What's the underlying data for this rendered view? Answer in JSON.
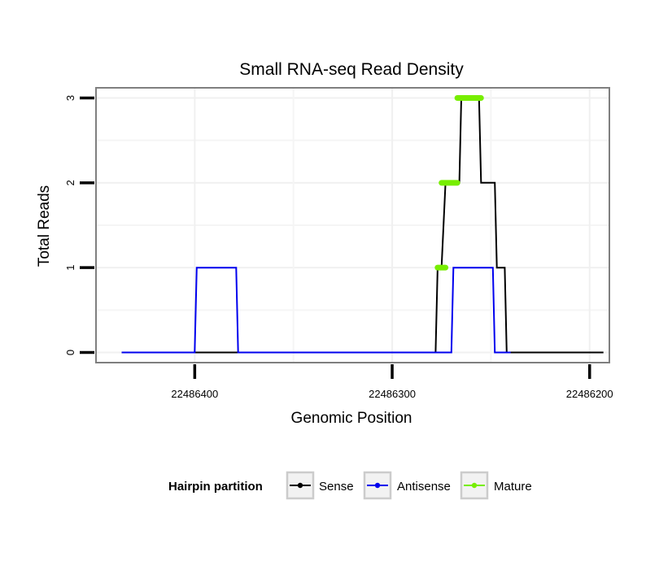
{
  "chart_data": {
    "type": "line",
    "title": "Small RNA-seq Read Density",
    "xlabel": "Genomic Position",
    "ylabel": "Total Reads",
    "x_reversed": true,
    "xlim": [
      22486450,
      22486190
    ],
    "ylim": [
      -0.12,
      3.12
    ],
    "x_ticks": [
      22486400,
      22486300,
      22486200
    ],
    "x_tick_labels": [
      "22486400",
      "22486300",
      "22486200"
    ],
    "y_ticks": [
      0,
      1,
      2,
      3
    ],
    "y_tick_labels": [
      "0",
      "1",
      "2",
      "3"
    ],
    "grid": true,
    "legend": {
      "title": "Hairpin partition",
      "position": "bottom",
      "entries": [
        "Sense",
        "Antisense",
        "Mature"
      ]
    },
    "series": [
      {
        "name": "Sense",
        "color": "#000000",
        "style": "line",
        "points": [
          [
            22486437,
            0
          ],
          [
            22486278,
            0
          ],
          [
            22486277,
            1
          ],
          [
            22486275,
            1
          ],
          [
            22486273,
            2
          ],
          [
            22486266,
            2
          ],
          [
            22486265,
            3
          ],
          [
            22486256,
            3
          ],
          [
            22486255,
            2
          ],
          [
            22486248,
            2
          ],
          [
            22486247,
            1
          ],
          [
            22486243,
            1
          ],
          [
            22486242,
            0
          ],
          [
            22486193,
            0
          ]
        ]
      },
      {
        "name": "Antisense",
        "color": "#0000ee",
        "style": "line",
        "points": [
          [
            22486437,
            0
          ],
          [
            22486400,
            0
          ],
          [
            22486399,
            1
          ],
          [
            22486379,
            1
          ],
          [
            22486378,
            0
          ],
          [
            22486270,
            0
          ],
          [
            22486269,
            1
          ],
          [
            22486249,
            1
          ],
          [
            22486248,
            0
          ],
          [
            22486240,
            0
          ]
        ]
      },
      {
        "name": "Mature",
        "color": "#77ee00",
        "style": "segments",
        "segments": [
          [
            22486277,
            22486273,
            1
          ],
          [
            22486275,
            22486267,
            2
          ],
          [
            22486267,
            22486255,
            3
          ]
        ]
      }
    ]
  }
}
